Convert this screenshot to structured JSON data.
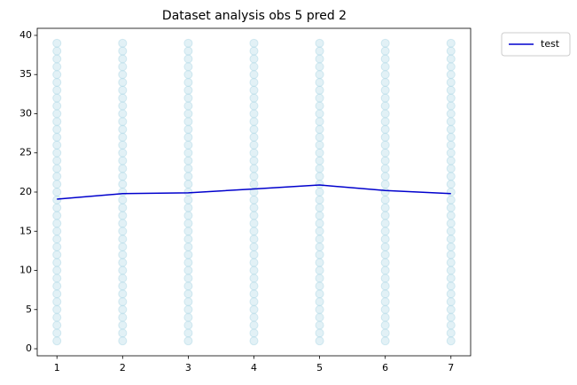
{
  "chart_data": {
    "type": "scatter-line",
    "title": "Dataset analysis obs 5 pred 2",
    "xlim": [
      0.7,
      7.3
    ],
    "xticks": [
      1,
      2,
      3,
      4,
      5,
      6,
      7
    ],
    "ylim": [
      -0.9,
      40.9
    ],
    "yticks": [
      0,
      5,
      10,
      15,
      20,
      25,
      30,
      35,
      40
    ],
    "grid": false,
    "legend": "outside upper right",
    "points_color": "#add8e6",
    "points": [
      {
        "x": 1,
        "y": [
          1,
          2,
          3,
          4,
          5,
          6,
          7,
          8,
          9,
          10,
          11,
          12,
          13,
          14,
          15,
          16,
          17,
          18,
          19,
          20,
          21,
          22,
          23,
          24,
          25,
          26,
          27,
          28,
          29,
          30,
          31,
          32,
          33,
          34,
          35,
          36,
          37,
          38,
          39
        ]
      },
      {
        "x": 2,
        "y": [
          1,
          2,
          3,
          4,
          5,
          6,
          7,
          8,
          9,
          10,
          11,
          12,
          13,
          14,
          15,
          16,
          17,
          18,
          19,
          20,
          21,
          22,
          23,
          24,
          25,
          26,
          27,
          28,
          29,
          30,
          31,
          32,
          33,
          34,
          35,
          36,
          37,
          38,
          39
        ]
      },
      {
        "x": 3,
        "y": [
          1,
          2,
          3,
          4,
          5,
          6,
          7,
          8,
          9,
          10,
          11,
          12,
          13,
          14,
          15,
          16,
          17,
          18,
          19,
          20,
          21,
          22,
          23,
          24,
          25,
          26,
          27,
          28,
          29,
          30,
          31,
          32,
          33,
          34,
          35,
          36,
          37,
          38,
          39
        ]
      },
      {
        "x": 4,
        "y": [
          1,
          2,
          3,
          4,
          5,
          6,
          7,
          8,
          9,
          10,
          11,
          12,
          13,
          14,
          15,
          16,
          17,
          18,
          19,
          20,
          21,
          22,
          23,
          24,
          25,
          26,
          27,
          28,
          29,
          30,
          31,
          32,
          33,
          34,
          35,
          36,
          37,
          38,
          39
        ]
      },
      {
        "x": 5,
        "y": [
          1,
          2,
          3,
          4,
          5,
          6,
          7,
          8,
          9,
          10,
          11,
          12,
          13,
          14,
          15,
          16,
          17,
          18,
          19,
          20,
          21,
          22,
          23,
          24,
          25,
          26,
          27,
          28,
          29,
          30,
          31,
          32,
          33,
          34,
          35,
          36,
          37,
          38,
          39
        ]
      },
      {
        "x": 6,
        "y": [
          1,
          2,
          3,
          4,
          5,
          6,
          7,
          8,
          9,
          10,
          11,
          12,
          13,
          14,
          15,
          16,
          17,
          18,
          19,
          20,
          21,
          22,
          23,
          24,
          25,
          26,
          27,
          28,
          29,
          30,
          31,
          32,
          33,
          34,
          35,
          36,
          37,
          38,
          39
        ]
      },
      {
        "x": 7,
        "y": [
          1,
          2,
          3,
          4,
          5,
          6,
          7,
          8,
          9,
          10,
          11,
          12,
          13,
          14,
          15,
          16,
          17,
          18,
          19,
          20,
          21,
          22,
          23,
          24,
          25,
          26,
          27,
          28,
          29,
          30,
          31,
          32,
          33,
          34,
          35,
          36,
          37,
          38,
          39
        ]
      }
    ],
    "series": [
      {
        "name": "test",
        "color": "#0000cd",
        "x": [
          1,
          2,
          3,
          4,
          5,
          6,
          7
        ],
        "values": [
          19.1,
          19.8,
          19.9,
          20.4,
          20.9,
          20.2,
          19.8
        ]
      }
    ]
  }
}
